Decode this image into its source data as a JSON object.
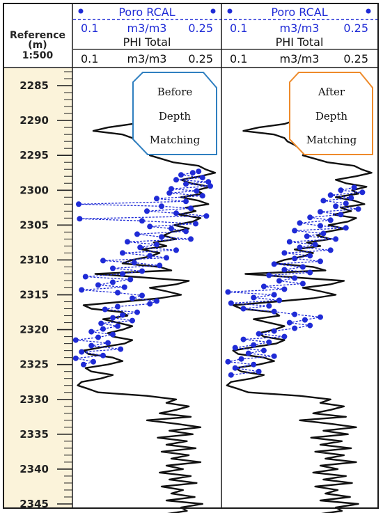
{
  "header": {
    "reference_title": "Reference",
    "reference_unit": "(m)",
    "scale": "1:500"
  },
  "colors": {
    "frame": "#1a1a1a",
    "depth_ruler_bg": "#fbf3da",
    "rcal": "#1f2bd6",
    "phi": "#111111",
    "before_box": "#2f7fc0",
    "after_box": "#ee8a2a"
  },
  "tracks": [
    {
      "rcal_name": "Poro RCAL",
      "rcal_min": "0.1",
      "rcal_unit": "m3/m3",
      "rcal_max": "0.25",
      "phi_name": "PHI Total",
      "phi_min": "0.1",
      "phi_unit": "m3/m3",
      "phi_max": "0.25",
      "annotation": [
        "Before",
        "Depth",
        "Matching"
      ]
    },
    {
      "rcal_name": "Poro RCAL",
      "rcal_min": "0.1",
      "rcal_unit": "m3/m3",
      "rcal_max": "0.25",
      "phi_name": "PHI Total",
      "phi_min": "0.1",
      "phi_unit": "m3/m3",
      "phi_max": "0.25",
      "annotation": [
        "After",
        "Depth",
        "Matching"
      ]
    }
  ],
  "chart_data": {
    "type": "line",
    "y_label": "Reference (m)",
    "y_range": [
      2282.5,
      2345.6
    ],
    "y_ticks": [
      2285,
      2290,
      2295,
      2300,
      2305,
      2310,
      2315,
      2320,
      2325,
      2330,
      2335,
      2340,
      2345
    ],
    "x_range": [
      0.1,
      0.25
    ],
    "series": [
      {
        "name": "PHI Total",
        "track": 1,
        "depth_step": 0.5,
        "depth_start": 2284,
        "values": [
          0.175,
          0.19,
          0.188,
          0.185,
          0.2,
          0.21,
          0.198,
          0.19,
          0.205,
          0.195,
          0.188,
          0.18,
          0.17,
          0.16,
          0.135,
          0.12,
          0.15,
          0.16,
          0.163,
          0.17,
          0.175,
          0.18,
          0.178,
          0.19,
          0.202,
          0.228,
          0.235,
          0.245,
          0.23,
          0.21,
          0.22,
          0.24,
          0.226,
          0.232,
          0.21,
          0.228,
          0.238,
          0.215,
          0.225,
          0.208,
          0.23,
          0.222,
          0.203,
          0.218,
          0.2,
          0.192,
          0.205,
          0.182,
          0.195,
          0.17,
          0.188,
          0.178,
          0.16,
          0.15,
          0.188,
          0.2,
          0.122,
          0.17,
          0.218,
          0.205,
          0.178,
          0.195,
          0.21,
          0.188,
          0.15,
          0.11,
          0.118,
          0.15,
          0.155,
          0.13,
          0.145,
          0.16,
          0.15,
          0.135,
          0.14,
          0.16,
          0.152,
          0.13,
          0.11,
          0.115,
          0.14,
          0.15,
          0.135,
          0.112,
          0.118,
          0.14,
          0.128,
          0.108,
          0.104,
          0.115,
          0.125,
          0.175,
          0.205,
          0.195,
          0.218,
          0.205,
          0.188,
          0.22,
          0.175,
          0.205,
          0.23,
          0.198,
          0.222,
          0.186,
          0.216,
          0.195,
          0.225,
          0.19,
          0.218,
          0.2,
          0.23,
          0.195,
          0.212,
          0.188,
          0.22,
          0.198,
          0.226,
          0.19,
          0.212,
          0.2,
          0.224,
          0.195,
          0.232,
          0.21,
          0.216,
          0.192
        ]
      },
      {
        "name": "PHI Total",
        "track": 2,
        "depth_step": 0.5,
        "depth_start": 2284,
        "values": [
          0.175,
          0.19,
          0.188,
          0.185,
          0.2,
          0.21,
          0.198,
          0.19,
          0.205,
          0.195,
          0.188,
          0.18,
          0.17,
          0.16,
          0.135,
          0.12,
          0.15,
          0.16,
          0.163,
          0.17,
          0.175,
          0.18,
          0.178,
          0.19,
          0.202,
          0.228,
          0.235,
          0.245,
          0.23,
          0.21,
          0.22,
          0.24,
          0.226,
          0.232,
          0.21,
          0.228,
          0.238,
          0.215,
          0.225,
          0.208,
          0.23,
          0.222,
          0.203,
          0.218,
          0.2,
          0.192,
          0.205,
          0.182,
          0.195,
          0.17,
          0.188,
          0.178,
          0.16,
          0.15,
          0.188,
          0.2,
          0.122,
          0.17,
          0.218,
          0.205,
          0.178,
          0.195,
          0.21,
          0.188,
          0.15,
          0.11,
          0.118,
          0.15,
          0.155,
          0.13,
          0.145,
          0.16,
          0.15,
          0.135,
          0.14,
          0.16,
          0.152,
          0.13,
          0.11,
          0.115,
          0.14,
          0.15,
          0.135,
          0.112,
          0.118,
          0.14,
          0.128,
          0.108,
          0.104,
          0.115,
          0.125,
          0.175,
          0.205,
          0.195,
          0.218,
          0.205,
          0.188,
          0.22,
          0.175,
          0.205,
          0.23,
          0.198,
          0.222,
          0.186,
          0.216,
          0.195,
          0.225,
          0.19,
          0.218,
          0.2,
          0.23,
          0.195,
          0.212,
          0.188,
          0.22,
          0.198,
          0.226,
          0.19,
          0.212,
          0.2,
          0.224,
          0.195,
          0.232,
          0.21,
          0.216,
          0.192
        ]
      },
      {
        "name": "Poro RCAL",
        "track": 1,
        "points": [
          [
            2297.3,
            0.228
          ],
          [
            2297.5,
            0.222
          ],
          [
            2297.8,
            0.21
          ],
          [
            2298.2,
            0.232
          ],
          [
            2298.5,
            0.205
          ],
          [
            2298.8,
            0.238
          ],
          [
            2299.1,
            0.215
          ],
          [
            2299.4,
            0.24
          ],
          [
            2299.8,
            0.2
          ],
          [
            2300.1,
            0.226
          ],
          [
            2300.4,
            0.198
          ],
          [
            2300.8,
            0.232
          ],
          [
            2301.2,
            0.185
          ],
          [
            2301.6,
            0.215
          ],
          [
            2302.0,
            0.105
          ],
          [
            2302.3,
            0.19
          ],
          [
            2302.6,
            0.22
          ],
          [
            2303.0,
            0.175
          ],
          [
            2303.3,
            0.205
          ],
          [
            2303.7,
            0.236
          ],
          [
            2304.1,
            0.106
          ],
          [
            2304.4,
            0.17
          ],
          [
            2304.8,
            0.225
          ],
          [
            2305.2,
            0.178
          ],
          [
            2305.5,
            0.2
          ],
          [
            2305.9,
            0.215
          ],
          [
            2306.3,
            0.165
          ],
          [
            2306.7,
            0.19
          ],
          [
            2307.0,
            0.22
          ],
          [
            2307.4,
            0.155
          ],
          [
            2307.8,
            0.185
          ],
          [
            2308.2,
            0.168
          ],
          [
            2308.6,
            0.205
          ],
          [
            2309.0,
            0.15
          ],
          [
            2309.4,
            0.178
          ],
          [
            2309.7,
            0.195
          ],
          [
            2310.1,
            0.13
          ],
          [
            2310.4,
            0.162
          ],
          [
            2310.8,
            0.188
          ],
          [
            2311.2,
            0.14
          ],
          [
            2311.6,
            0.17
          ],
          [
            2312.0,
            0.15
          ],
          [
            2312.4,
            0.112
          ],
          [
            2312.8,
            0.158
          ],
          [
            2313.2,
            0.14
          ],
          [
            2313.6,
            0.125
          ],
          [
            2313.9,
            0.152
          ],
          [
            2314.3,
            0.108
          ],
          [
            2314.7,
            0.145
          ],
          [
            2315.1,
            0.17
          ],
          [
            2315.5,
            0.16
          ],
          [
            2315.9,
            0.185
          ],
          [
            2316.3,
            0.178
          ],
          [
            2316.7,
            0.145
          ],
          [
            2317.1,
            0.132
          ],
          [
            2317.5,
            0.165
          ],
          [
            2317.9,
            0.15
          ],
          [
            2318.3,
            0.14
          ],
          [
            2318.7,
            0.16
          ],
          [
            2319.1,
            0.128
          ],
          [
            2319.5,
            0.145
          ],
          [
            2319.9,
            0.13
          ],
          [
            2320.3,
            0.118
          ],
          [
            2320.7,
            0.14
          ],
          [
            2321.1,
            0.125
          ],
          [
            2321.5,
            0.102
          ],
          [
            2321.9,
            0.135
          ],
          [
            2322.3,
            0.118
          ],
          [
            2322.8,
            0.148
          ],
          [
            2323.2,
            0.108
          ],
          [
            2323.7,
            0.13
          ],
          [
            2324.1,
            0.102
          ],
          [
            2324.6,
            0.12
          ],
          [
            2325.0,
            0.11
          ]
        ]
      },
      {
        "name": "Poro RCAL",
        "track": 2,
        "points": [
          [
            2299.6,
            0.228
          ],
          [
            2300.0,
            0.215
          ],
          [
            2300.3,
            0.236
          ],
          [
            2300.7,
            0.205
          ],
          [
            2301.1,
            0.225
          ],
          [
            2301.5,
            0.198
          ],
          [
            2301.9,
            0.22
          ],
          [
            2302.3,
            0.21
          ],
          [
            2302.7,
            0.232
          ],
          [
            2303.1,
            0.195
          ],
          [
            2303.5,
            0.215
          ],
          [
            2303.9,
            0.185
          ],
          [
            2304.3,
            0.205
          ],
          [
            2304.7,
            0.175
          ],
          [
            2305.1,
            0.195
          ],
          [
            2305.4,
            0.22
          ],
          [
            2305.8,
            0.17
          ],
          [
            2306.2,
            0.198
          ],
          [
            2306.6,
            0.182
          ],
          [
            2307.0,
            0.21
          ],
          [
            2307.4,
            0.165
          ],
          [
            2307.8,
            0.19
          ],
          [
            2308.2,
            0.175
          ],
          [
            2308.6,
            0.205
          ],
          [
            2309.0,
            0.16
          ],
          [
            2309.4,
            0.185
          ],
          [
            2309.8,
            0.17
          ],
          [
            2310.2,
            0.195
          ],
          [
            2310.6,
            0.15
          ],
          [
            2311.0,
            0.178
          ],
          [
            2311.4,
            0.16
          ],
          [
            2311.8,
            0.185
          ],
          [
            2312.2,
            0.145
          ],
          [
            2312.6,
            0.17
          ],
          [
            2313.0,
            0.155
          ],
          [
            2313.4,
            0.178
          ],
          [
            2313.8,
            0.14
          ],
          [
            2314.2,
            0.16
          ],
          [
            2314.6,
            0.105
          ],
          [
            2315.0,
            0.15
          ],
          [
            2315.4,
            0.13
          ],
          [
            2315.8,
            0.155
          ],
          [
            2316.2,
            0.108
          ],
          [
            2316.6,
            0.145
          ],
          [
            2317.0,
            0.12
          ],
          [
            2317.4,
            0.15
          ],
          [
            2317.8,
            0.17
          ],
          [
            2318.2,
            0.195
          ],
          [
            2318.6,
            0.18
          ],
          [
            2319.0,
            0.165
          ],
          [
            2319.4,
            0.185
          ],
          [
            2319.8,
            0.17
          ],
          [
            2320.2,
            0.15
          ],
          [
            2320.6,
            0.135
          ],
          [
            2321.0,
            0.16
          ],
          [
            2321.4,
            0.12
          ],
          [
            2321.8,
            0.145
          ],
          [
            2322.2,
            0.13
          ],
          [
            2322.6,
            0.112
          ],
          [
            2323.0,
            0.14
          ],
          [
            2323.4,
            0.125
          ],
          [
            2323.8,
            0.15
          ],
          [
            2324.2,
            0.118
          ],
          [
            2324.6,
            0.105
          ],
          [
            2325.0,
            0.13
          ],
          [
            2325.5,
            0.112
          ],
          [
            2326.0,
            0.135
          ],
          [
            2326.5,
            0.108
          ]
        ]
      }
    ]
  }
}
